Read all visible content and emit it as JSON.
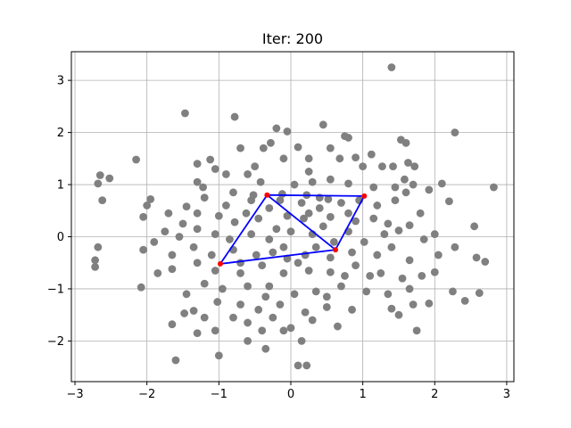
{
  "chart_data": {
    "type": "scatter",
    "title": "Iter: 200",
    "xlabel": "",
    "ylabel": "",
    "xlim": [
      -3.05,
      3.1
    ],
    "ylim": [
      -2.78,
      3.55
    ],
    "xticks": [
      -3,
      -2,
      -1,
      0,
      1,
      2,
      3
    ],
    "yticks": [
      -2,
      -1,
      0,
      1,
      2,
      3
    ],
    "grid": true,
    "colors": {
      "points": "#808080",
      "path": "#0000ff",
      "nodes": "#ff0000",
      "grid": "#b0b0b0"
    },
    "points": [
      [
        1.4,
        3.25
      ],
      [
        2.28,
        2.0
      ],
      [
        -1.47,
        2.37
      ],
      [
        -0.78,
        2.3
      ],
      [
        0.45,
        2.15
      ],
      [
        -0.2,
        2.08
      ],
      [
        -0.05,
        2.02
      ],
      [
        0.8,
        1.9
      ],
      [
        0.75,
        1.93
      ],
      [
        1.6,
        1.8
      ],
      [
        1.53,
        1.86
      ],
      [
        -2.15,
        1.48
      ],
      [
        -0.28,
        1.8
      ],
      [
        -0.38,
        1.7
      ],
      [
        0.1,
        1.72
      ],
      [
        -0.7,
        1.7
      ],
      [
        0.55,
        1.7
      ],
      [
        1.12,
        1.58
      ],
      [
        1.27,
        1.35
      ],
      [
        1.42,
        1.35
      ],
      [
        1.63,
        1.42
      ],
      [
        1.72,
        1.35
      ],
      [
        -1.3,
        1.4
      ],
      [
        -1.12,
        1.48
      ],
      [
        -0.1,
        1.5
      ],
      [
        0.25,
        1.5
      ],
      [
        0.68,
        1.5
      ],
      [
        0.9,
        1.52
      ],
      [
        1.0,
        1.35
      ],
      [
        -2.65,
        1.18
      ],
      [
        -2.52,
        1.12
      ],
      [
        -2.68,
        1.02
      ],
      [
        -2.62,
        0.7
      ],
      [
        -1.05,
        1.3
      ],
      [
        -0.9,
        1.2
      ],
      [
        -0.6,
        1.2
      ],
      [
        -0.42,
        1.05
      ],
      [
        0.05,
        1.0
      ],
      [
        0.3,
        1.05
      ],
      [
        0.55,
        1.1
      ],
      [
        0.8,
        1.02
      ],
      [
        1.15,
        0.95
      ],
      [
        1.45,
        0.95
      ],
      [
        1.58,
        1.1
      ],
      [
        1.7,
        1.0
      ],
      [
        2.1,
        1.02
      ],
      [
        -1.95,
        0.72
      ],
      [
        -2.0,
        0.6
      ],
      [
        -2.05,
        0.38
      ],
      [
        -1.7,
        0.45
      ],
      [
        -1.3,
        1.05
      ],
      [
        -1.22,
        0.95
      ],
      [
        -0.8,
        0.85
      ],
      [
        -0.55,
        0.7
      ],
      [
        -0.15,
        0.7
      ],
      [
        0.15,
        0.65
      ],
      [
        0.4,
        0.75
      ],
      [
        0.7,
        0.65
      ],
      [
        0.95,
        0.7
      ],
      [
        1.2,
        0.6
      ],
      [
        1.45,
        0.7
      ],
      [
        1.6,
        0.85
      ],
      [
        1.92,
        0.9
      ],
      [
        2.2,
        0.68
      ],
      [
        2.82,
        0.95
      ],
      [
        -1.45,
        0.58
      ],
      [
        -1.3,
        0.45
      ],
      [
        -1.0,
        0.4
      ],
      [
        -0.78,
        0.28
      ],
      [
        -0.45,
        0.35
      ],
      [
        -0.05,
        0.4
      ],
      [
        0.25,
        0.45
      ],
      [
        0.55,
        0.38
      ],
      [
        0.9,
        0.3
      ],
      [
        1.15,
        0.35
      ],
      [
        1.35,
        0.25
      ],
      [
        1.65,
        0.22
      ],
      [
        -1.75,
        0.1
      ],
      [
        -1.55,
        0.0
      ],
      [
        -1.3,
        0.15
      ],
      [
        -1.05,
        0.05
      ],
      [
        -0.85,
        -0.05
      ],
      [
        -0.55,
        0.05
      ],
      [
        -0.3,
        -0.05
      ],
      [
        0.0,
        0.1
      ],
      [
        0.3,
        0.05
      ],
      [
        0.8,
        0.1
      ],
      [
        1.02,
        -0.1
      ],
      [
        1.3,
        0.05
      ],
      [
        1.5,
        0.12
      ],
      [
        2.0,
        0.05
      ],
      [
        -2.68,
        -0.2
      ],
      [
        -2.05,
        -0.25
      ],
      [
        -1.9,
        -0.1
      ],
      [
        -1.65,
        -0.35
      ],
      [
        -1.35,
        -0.2
      ],
      [
        -1.1,
        -0.35
      ],
      [
        -0.8,
        -0.25
      ],
      [
        -0.48,
        -0.35
      ],
      [
        -0.1,
        -0.2
      ],
      [
        0.2,
        -0.35
      ],
      [
        0.55,
        -0.4
      ],
      [
        0.85,
        -0.3
      ],
      [
        1.2,
        -0.35
      ],
      [
        1.4,
        -0.2
      ],
      [
        1.65,
        -0.45
      ],
      [
        2.05,
        -0.35
      ],
      [
        2.28,
        -0.2
      ],
      [
        2.58,
        -0.4
      ],
      [
        2.7,
        -0.48
      ],
      [
        -2.72,
        -0.45
      ],
      [
        -2.72,
        -0.58
      ],
      [
        -1.65,
        -0.62
      ],
      [
        -1.3,
        -0.5
      ],
      [
        -1.05,
        -0.65
      ],
      [
        -0.7,
        -0.7
      ],
      [
        -0.4,
        -0.55
      ],
      [
        -0.1,
        -0.7
      ],
      [
        0.25,
        -0.65
      ],
      [
        0.55,
        -0.68
      ],
      [
        0.9,
        -0.55
      ],
      [
        1.25,
        -0.7
      ],
      [
        1.55,
        -0.8
      ],
      [
        1.82,
        -0.75
      ],
      [
        2.0,
        -0.68
      ],
      [
        -2.08,
        -0.97
      ],
      [
        -1.45,
        -1.1
      ],
      [
        -1.2,
        -0.9
      ],
      [
        -0.95,
        -1.0
      ],
      [
        -0.6,
        -0.95
      ],
      [
        -0.3,
        -0.95
      ],
      [
        0.05,
        -1.1
      ],
      [
        0.35,
        -1.05
      ],
      [
        0.7,
        -0.95
      ],
      [
        1.05,
        -1.05
      ],
      [
        1.35,
        -1.1
      ],
      [
        1.65,
        -1.0
      ],
      [
        2.25,
        -1.05
      ],
      [
        2.62,
        -1.08
      ],
      [
        2.42,
        -1.23
      ],
      [
        -1.02,
        -1.25
      ],
      [
        -0.7,
        -1.3
      ],
      [
        -0.45,
        -1.4
      ],
      [
        -0.15,
        -1.3
      ],
      [
        0.2,
        -1.45
      ],
      [
        0.5,
        -1.35
      ],
      [
        0.85,
        -1.4
      ],
      [
        1.4,
        -1.38
      ],
      [
        1.7,
        -1.3
      ],
      [
        1.92,
        -1.28
      ],
      [
        -1.48,
        -1.47
      ],
      [
        -1.35,
        -1.42
      ],
      [
        -1.65,
        -1.68
      ],
      [
        -1.2,
        -1.55
      ],
      [
        -0.8,
        -1.55
      ],
      [
        -0.6,
        -1.65
      ],
      [
        -0.25,
        -1.55
      ],
      [
        0.0,
        -1.75
      ],
      [
        0.3,
        -1.6
      ],
      [
        0.65,
        -1.72
      ],
      [
        1.5,
        -1.5
      ],
      [
        1.75,
        -1.8
      ],
      [
        -1.05,
        -1.8
      ],
      [
        -0.4,
        -1.8
      ],
      [
        -0.1,
        -1.8
      ],
      [
        -1.3,
        -1.85
      ],
      [
        -0.6,
        -2.0
      ],
      [
        0.15,
        -2.0
      ],
      [
        -0.35,
        -2.15
      ],
      [
        -1.6,
        -2.37
      ],
      [
        -1.0,
        -2.28
      ],
      [
        0.1,
        -2.47
      ],
      [
        0.22,
        -2.47
      ],
      [
        -0.52,
        0.8
      ],
      [
        -0.12,
        0.82
      ],
      [
        0.22,
        0.8
      ],
      [
        0.52,
        0.72
      ],
      [
        0.4,
        0.55
      ],
      [
        0.18,
        0.35
      ],
      [
        -0.3,
        0.55
      ],
      [
        -0.62,
        0.45
      ],
      [
        -0.2,
        0.15
      ],
      [
        0.45,
        0.2
      ],
      [
        0.6,
        -0.1
      ],
      [
        -0.05,
        -0.42
      ],
      [
        -0.25,
        -0.3
      ],
      [
        0.35,
        -0.2
      ],
      [
        -0.7,
        -0.5
      ],
      [
        0.1,
        -0.5
      ],
      [
        0.75,
        -0.75
      ],
      [
        -0.35,
        -1.15
      ],
      [
        0.5,
        -1.15
      ],
      [
        1.1,
        -0.75
      ],
      [
        0.8,
        0.45
      ],
      [
        -0.9,
        0.6
      ],
      [
        -1.5,
        0.25
      ],
      [
        1.8,
        0.45
      ],
      [
        1.85,
        -0.05
      ],
      [
        -1.85,
        -0.7
      ],
      [
        2.55,
        0.2
      ],
      [
        -1.2,
        0.75
      ],
      [
        0.25,
        1.25
      ],
      [
        -0.5,
        1.35
      ]
    ],
    "path": [
      [
        -0.33,
        0.8
      ],
      [
        1.02,
        0.78
      ],
      [
        0.62,
        -0.25
      ],
      [
        -0.98,
        -0.52
      ],
      [
        -0.33,
        0.8
      ],
      [
        0.62,
        -0.25
      ]
    ]
  }
}
